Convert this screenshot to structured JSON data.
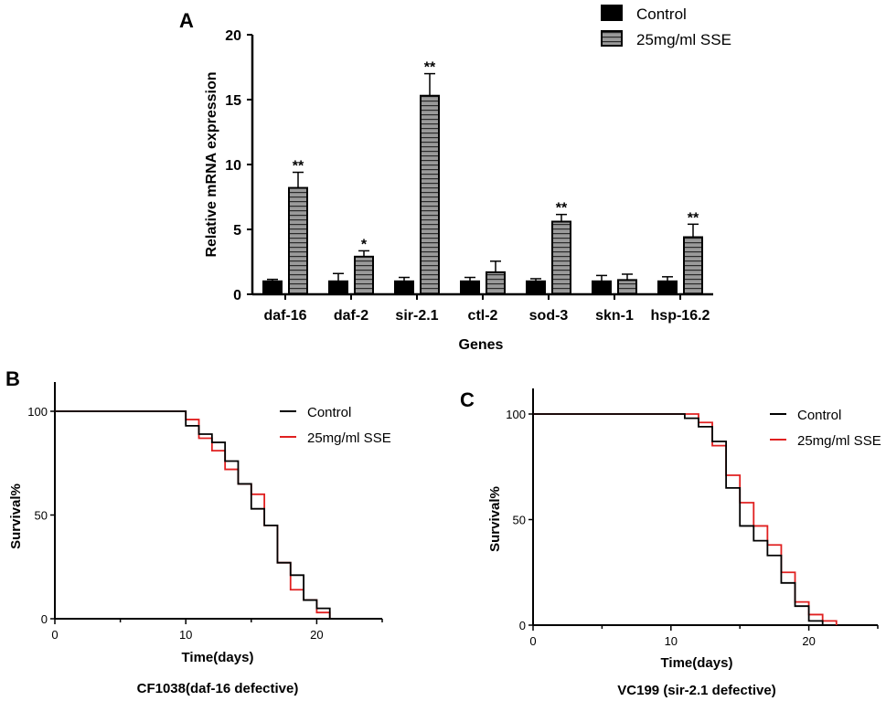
{
  "chart_data": [
    {
      "panel": "A",
      "type": "bar",
      "xlabel": "Genes",
      "ylabel": "Relative mRNA expression",
      "ylim": [
        0,
        20
      ],
      "yticks": [
        "0",
        "5",
        "10",
        "15",
        "20"
      ],
      "categories": [
        "daf-16",
        "daf-2",
        "sir-2.1",
        "ctl-2",
        "sod-3",
        "skn-1",
        "hsp-16.2"
      ],
      "series": [
        {
          "name": "Control",
          "color": "#000000",
          "pattern": "solid",
          "values": [
            1.0,
            1.0,
            1.0,
            1.0,
            1.0,
            1.0,
            1.0
          ],
          "errors": [
            0.15,
            0.6,
            0.3,
            0.3,
            0.2,
            0.45,
            0.35
          ]
        },
        {
          "name": "25mg/ml SSE",
          "color": "#888888",
          "pattern": "horizontal-stripes",
          "values": [
            8.2,
            2.9,
            15.3,
            1.7,
            5.6,
            1.1,
            4.4
          ],
          "errors": [
            1.2,
            0.45,
            1.7,
            0.85,
            0.55,
            0.45,
            1.0
          ]
        }
      ],
      "significance": [
        "**",
        "*",
        "**",
        "",
        "**",
        "",
        "**"
      ]
    },
    {
      "panel": "B",
      "type": "line",
      "step": true,
      "title": "CF1038(daf-16 defective)",
      "xlabel": "Time(days)",
      "ylabel": "Survival%",
      "xlim": [
        0,
        25
      ],
      "ylim": [
        0,
        100
      ],
      "xticks": [
        "0",
        "10",
        "20"
      ],
      "yticks": [
        "0",
        "50",
        "100"
      ],
      "series": [
        {
          "name": "Control",
          "color": "#000000",
          "x": [
            0,
            10,
            11,
            12,
            13,
            14,
            15,
            16,
            17,
            18,
            19,
            20,
            21
          ],
          "y": [
            100,
            93,
            89,
            85,
            76,
            65,
            53,
            45,
            27,
            21,
            9,
            5,
            0
          ]
        },
        {
          "name": "25mg/ml SSE",
          "color": "#e02020",
          "x": [
            0,
            10,
            11,
            12,
            13,
            14,
            15,
            16,
            17,
            18,
            19,
            20,
            21
          ],
          "y": [
            100,
            96,
            87,
            81,
            72,
            65,
            60,
            45,
            27,
            14,
            9,
            3,
            0
          ]
        }
      ]
    },
    {
      "panel": "C",
      "type": "line",
      "step": true,
      "title": "VC199 (sir-2.1 defective)",
      "xlabel": "Time(days)",
      "ylabel": "Survival%",
      "xlim": [
        0,
        25
      ],
      "ylim": [
        0,
        100
      ],
      "xticks": [
        "0",
        "10",
        "20"
      ],
      "yticks": [
        "0",
        "50",
        "100"
      ],
      "series": [
        {
          "name": "Control",
          "color": "#000000",
          "x": [
            0,
            11,
            12,
            13,
            14,
            15,
            16,
            17,
            18,
            19,
            20,
            21
          ],
          "y": [
            100,
            98,
            94,
            87,
            65,
            47,
            40,
            33,
            20,
            9,
            2,
            0
          ]
        },
        {
          "name": "25mg/ml SSE",
          "color": "#e02020",
          "x": [
            0,
            12,
            13,
            14,
            15,
            16,
            17,
            18,
            19,
            20,
            21,
            22
          ],
          "y": [
            100,
            96,
            85,
            71,
            58,
            47,
            38,
            25,
            11,
            5,
            2,
            0
          ]
        }
      ]
    }
  ]
}
